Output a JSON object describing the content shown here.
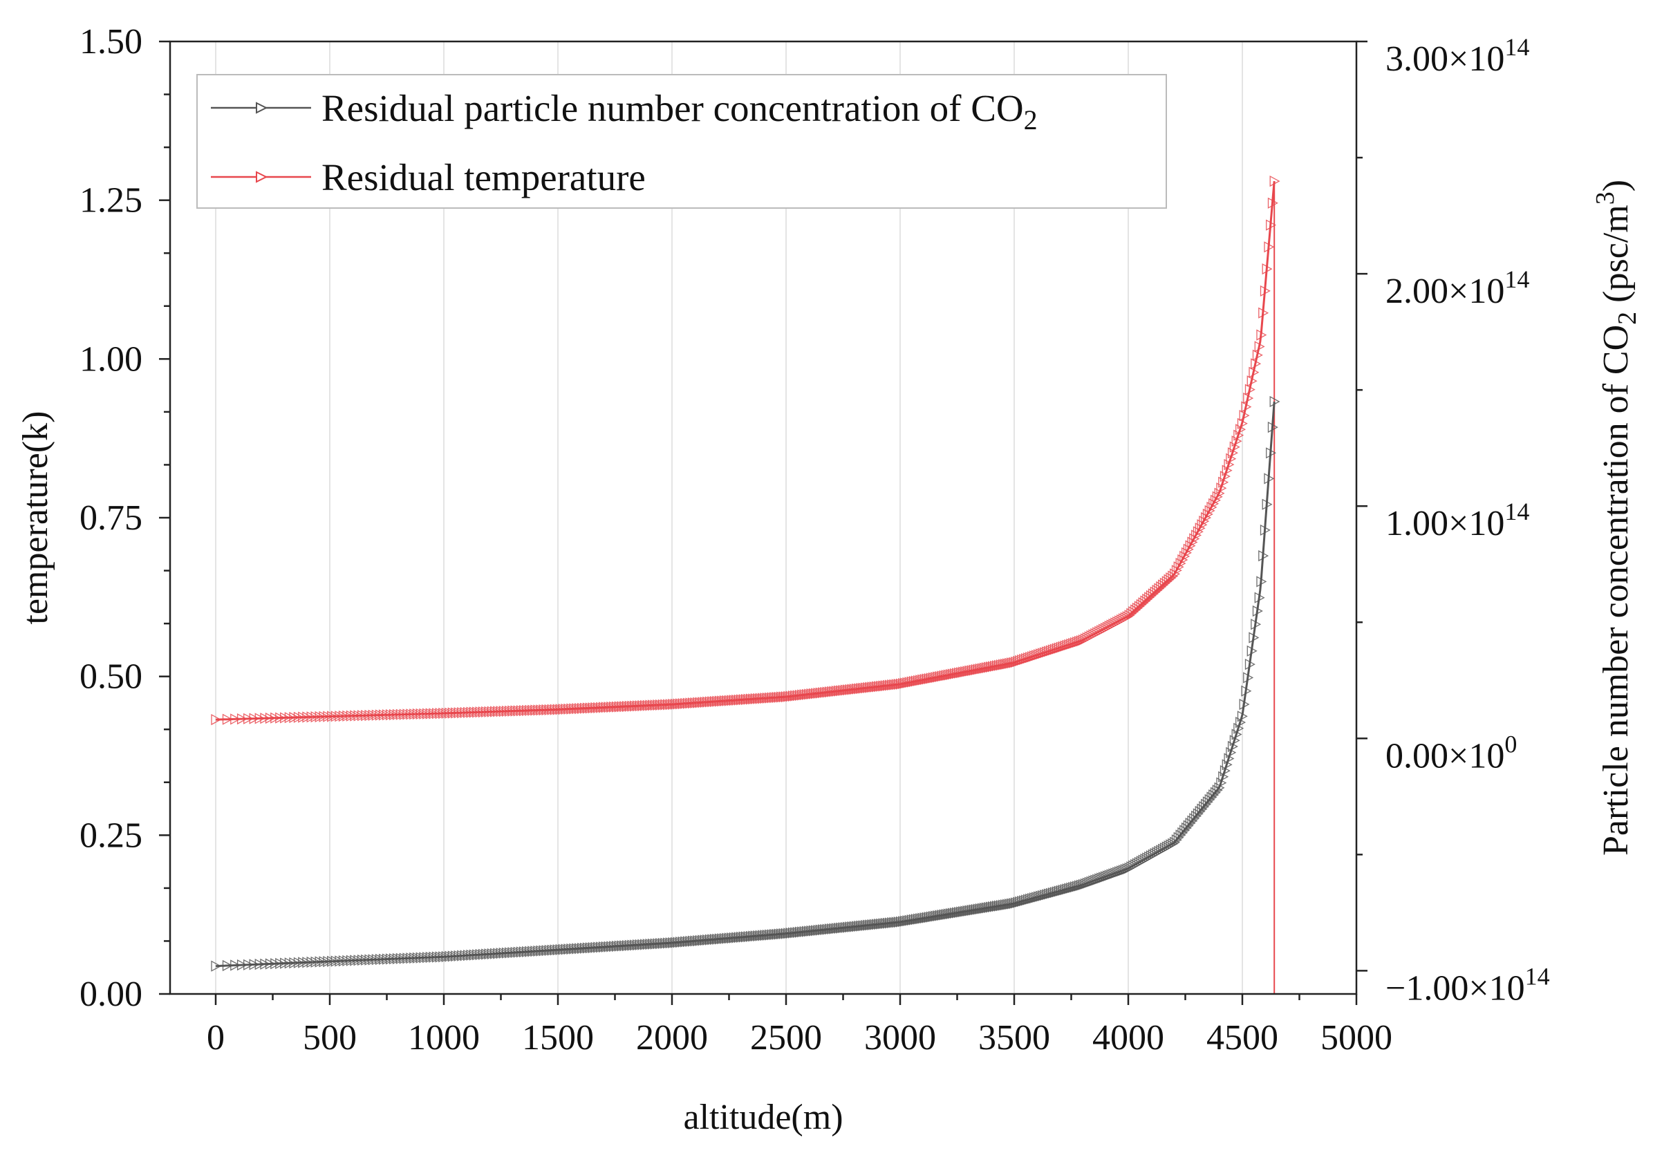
{
  "chart_data": {
    "type": "line",
    "xlabel": "altitude(m)",
    "ylabel": "temperature(k)",
    "y2label": "Particle number concentration of CO",
    "y2label_subscript": "2",
    "y2label_tail": " (psc/m",
    "y2label_superscript": "3",
    "y2label_end": ")",
    "xlim": [
      -200,
      5000
    ],
    "ylim": [
      0,
      1.5
    ],
    "y2lim": [
      -110000000000000.0,
      300000000000000.0
    ],
    "x_ticks": [
      0,
      500,
      1000,
      1500,
      2000,
      2500,
      3000,
      3500,
      4000,
      4500,
      5000
    ],
    "x_tick_labels": [
      "0",
      "500",
      "1000",
      "1500",
      "2000",
      "2500",
      "3000",
      "3500",
      "4000",
      "4500",
      "5000"
    ],
    "y_ticks": [
      0,
      0.25,
      0.5,
      0.75,
      1.0,
      1.25,
      1.5
    ],
    "y_tick_labels": [
      "0.00",
      "0.25",
      "0.50",
      "0.75",
      "1.00",
      "1.25",
      "1.50"
    ],
    "y2_ticks": [
      300000000000000.0,
      200000000000000.0,
      100000000000000.0,
      0,
      -100000000000000.0
    ],
    "y2_tick_labels": [
      {
        "mantissa": "3.00×10",
        "exp": "14"
      },
      {
        "mantissa": "2.00×10",
        "exp": "14"
      },
      {
        "mantissa": "1.00×10",
        "exp": "14"
      },
      {
        "mantissa": "0.00×10",
        "exp": "0"
      },
      {
        "mantissa": "−1.00×10",
        "exp": "14"
      }
    ],
    "grid": true,
    "legend_position": "top-left",
    "series": [
      {
        "name": "Residual particle number concentration of CO",
        "name_subscript": "2",
        "axis": "right",
        "color": "#555555",
        "x": [
          0,
          500,
          1000,
          1500,
          2000,
          2500,
          3000,
          3500,
          3800,
          4000,
          4200,
          4400,
          4500,
          4580,
          4640
        ],
        "y": [
          -98000000000000.0,
          -96000000000000.0,
          -94000000000000.0,
          -91000000000000.0,
          -88000000000000.0,
          -84000000000000.0,
          -79000000000000.0,
          -71000000000000.0,
          -63000000000000.0,
          -56000000000000.0,
          -45000000000000.0,
          -21000000000000.0,
          10000000000000.0,
          65000000000000.0,
          145000000000000.0
        ]
      },
      {
        "name": "Residual temperature",
        "axis": "left",
        "color": "#e8474d",
        "x": [
          0,
          500,
          1000,
          1500,
          2000,
          2500,
          3000,
          3500,
          3800,
          4000,
          4200,
          4400,
          4500,
          4580,
          4640
        ],
        "y": [
          0.432,
          0.437,
          0.442,
          0.448,
          0.456,
          0.468,
          0.488,
          0.522,
          0.557,
          0.595,
          0.66,
          0.79,
          0.9,
          1.03,
          1.28
        ]
      }
    ],
    "vertical_line_x": 4640
  }
}
